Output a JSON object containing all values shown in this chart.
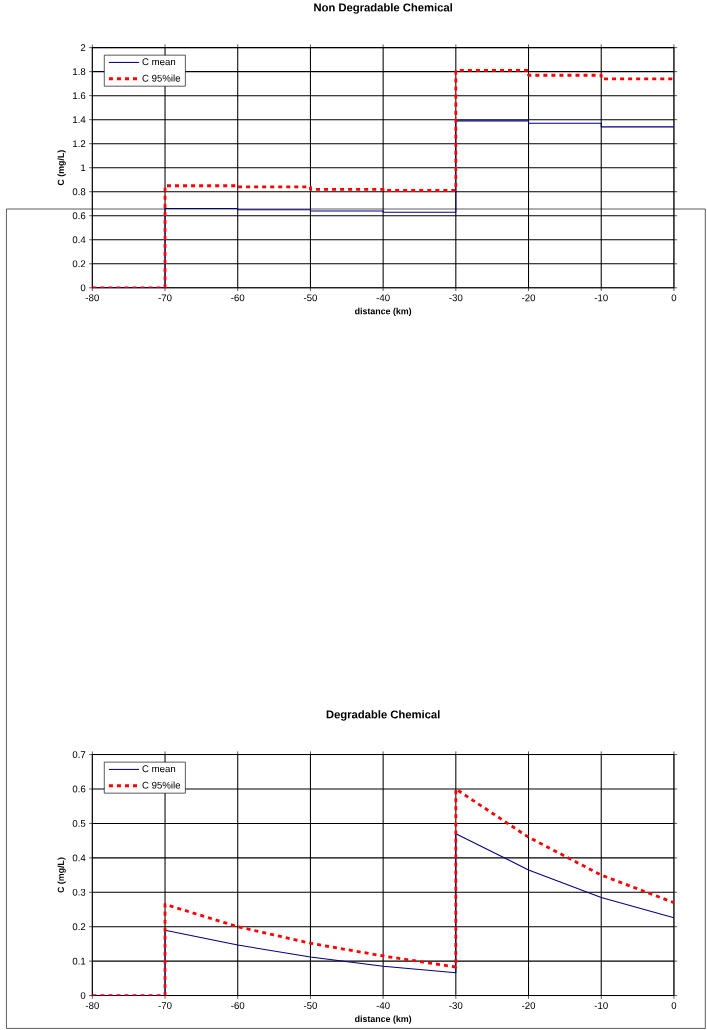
{
  "chart_data": [
    {
      "type": "line",
      "title": "Non Degradable Chemical",
      "xlabel": "distance (km)",
      "ylabel": "C (mg/L)",
      "xlim": [
        -80,
        0
      ],
      "xticks": [
        -80,
        -70,
        -60,
        -50,
        -40,
        -30,
        -20,
        -10,
        0
      ],
      "ylim": [
        0,
        2
      ],
      "yticks": [
        0,
        0.2,
        0.4,
        0.6,
        0.8,
        1,
        1.2,
        1.4,
        1.6,
        1.8,
        2
      ],
      "grid": true,
      "legend": "top left",
      "series": [
        {
          "name": "C mean",
          "color": "#000080",
          "line_style": "solid",
          "x": [
            -80,
            -70,
            -70,
            -60,
            -60,
            -50,
            -50,
            -40,
            -40,
            -30,
            -30,
            -20,
            -20,
            -10,
            -10,
            0
          ],
          "values": [
            0,
            0,
            0.66,
            0.66,
            0.65,
            0.65,
            0.64,
            0.64,
            0.63,
            0.63,
            1.39,
            1.39,
            1.37,
            1.37,
            1.34,
            1.34
          ]
        },
        {
          "name": "C 95%ile",
          "color": "#ff0000",
          "line_style": "dashed",
          "x": [
            -80,
            -70,
            -70,
            -60,
            -60,
            -50,
            -50,
            -40,
            -40,
            -30,
            -30,
            -20,
            -20,
            -10,
            -10,
            0
          ],
          "values": [
            0,
            0,
            0.85,
            0.85,
            0.84,
            0.84,
            0.82,
            0.82,
            0.81,
            0.81,
            1.81,
            1.81,
            1.77,
            1.77,
            1.74,
            1.74
          ]
        }
      ]
    },
    {
      "type": "line",
      "title": "Degradable Chemical",
      "xlabel": "distance (km)",
      "ylabel": "C (mg/L)",
      "xlim": [
        -80,
        0
      ],
      "xticks": [
        -80,
        -70,
        -60,
        -50,
        -40,
        -30,
        -20,
        -10,
        0
      ],
      "ylim": [
        0,
        0.7
      ],
      "yticks": [
        0,
        0.1,
        0.2,
        0.3,
        0.4,
        0.5,
        0.6,
        0.7
      ],
      "grid": true,
      "legend": "top left",
      "series": [
        {
          "name": "C mean",
          "color": "#000080",
          "line_style": "solid",
          "x": [
            -80,
            -70,
            -70,
            -60,
            -50,
            -40,
            -30,
            -30,
            -20,
            -10,
            0
          ],
          "values": [
            0,
            0,
            0.19,
            0.147,
            0.112,
            0.085,
            0.066,
            0.47,
            0.365,
            0.285,
            0.226
          ]
        },
        {
          "name": "C 95%ile",
          "color": "#ff0000",
          "line_style": "dashed",
          "x": [
            -80,
            -70,
            -70,
            -60,
            -50,
            -40,
            -30,
            -30,
            -20,
            -10,
            0
          ],
          "values": [
            0,
            0,
            0.265,
            0.2,
            0.152,
            0.115,
            0.083,
            0.6,
            0.46,
            0.35,
            0.27
          ]
        }
      ]
    }
  ]
}
